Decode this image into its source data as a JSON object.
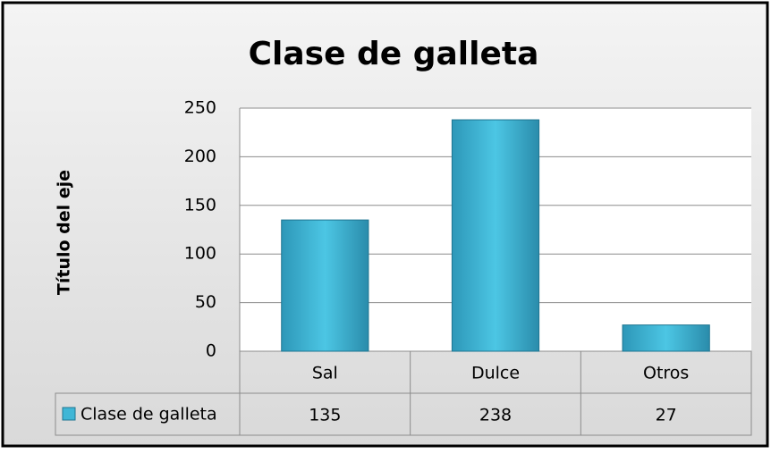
{
  "chart_data": {
    "type": "bar",
    "title": "Clase de galleta",
    "y_axis_label": "Título del eje",
    "categories": [
      "Sal",
      "Dulce",
      "Otros"
    ],
    "series": [
      {
        "name": "Clase de galleta",
        "color": "#3fb6d6",
        "values": [
          135,
          238,
          27
        ]
      }
    ],
    "ylim": [
      0,
      250
    ],
    "yticks": [
      0,
      50,
      100,
      150,
      200,
      250
    ],
    "grid": true,
    "data_table": true
  }
}
